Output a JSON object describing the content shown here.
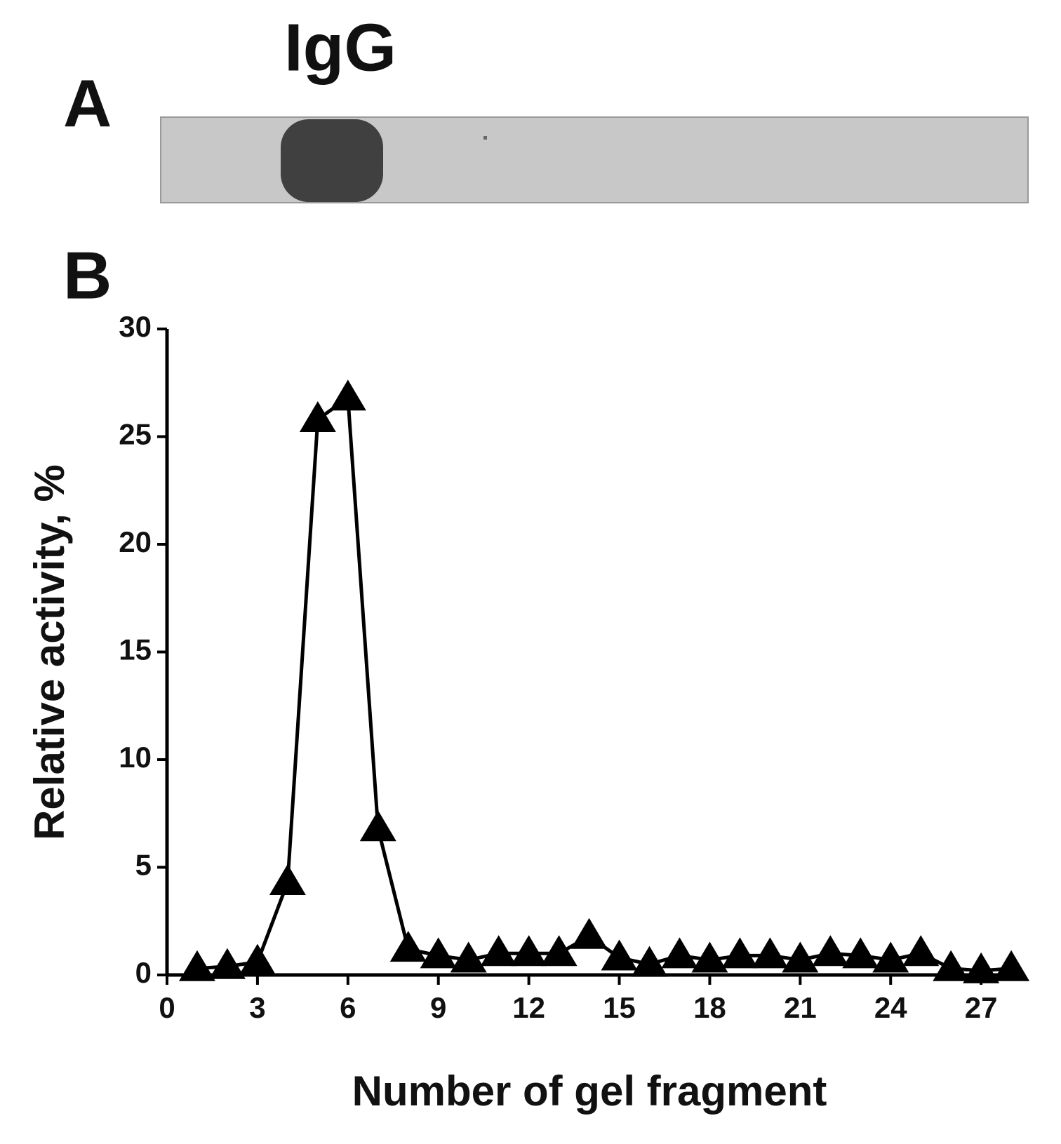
{
  "chart_data": {
    "type": "line",
    "panel_labels": [
      "A",
      "B"
    ],
    "gel_label": "IgG",
    "xlabel": "Number of gel fragment",
    "ylabel": "Relative activity, %",
    "x": [
      1,
      2,
      3,
      4,
      5,
      6,
      7,
      8,
      9,
      10,
      11,
      12,
      13,
      14,
      15,
      16,
      17,
      18,
      19,
      20,
      21,
      22,
      23,
      24,
      25,
      26,
      27,
      28
    ],
    "values": [
      0.3,
      0.4,
      0.6,
      4.3,
      25.8,
      26.8,
      6.8,
      1.2,
      0.9,
      0.7,
      1.0,
      1.0,
      1.0,
      1.8,
      0.8,
      0.5,
      0.9,
      0.7,
      0.9,
      0.9,
      0.7,
      1.0,
      0.9,
      0.7,
      1.0,
      0.3,
      0.2,
      0.3
    ],
    "color": "#000000",
    "xlim": [
      0,
      28.3
    ],
    "xticks": [
      0,
      3,
      6,
      9,
      12,
      15,
      18,
      21,
      24,
      27
    ],
    "ylim": [
      0,
      30
    ],
    "yticks": [
      0,
      5,
      10,
      15,
      20,
      25,
      30
    ]
  }
}
